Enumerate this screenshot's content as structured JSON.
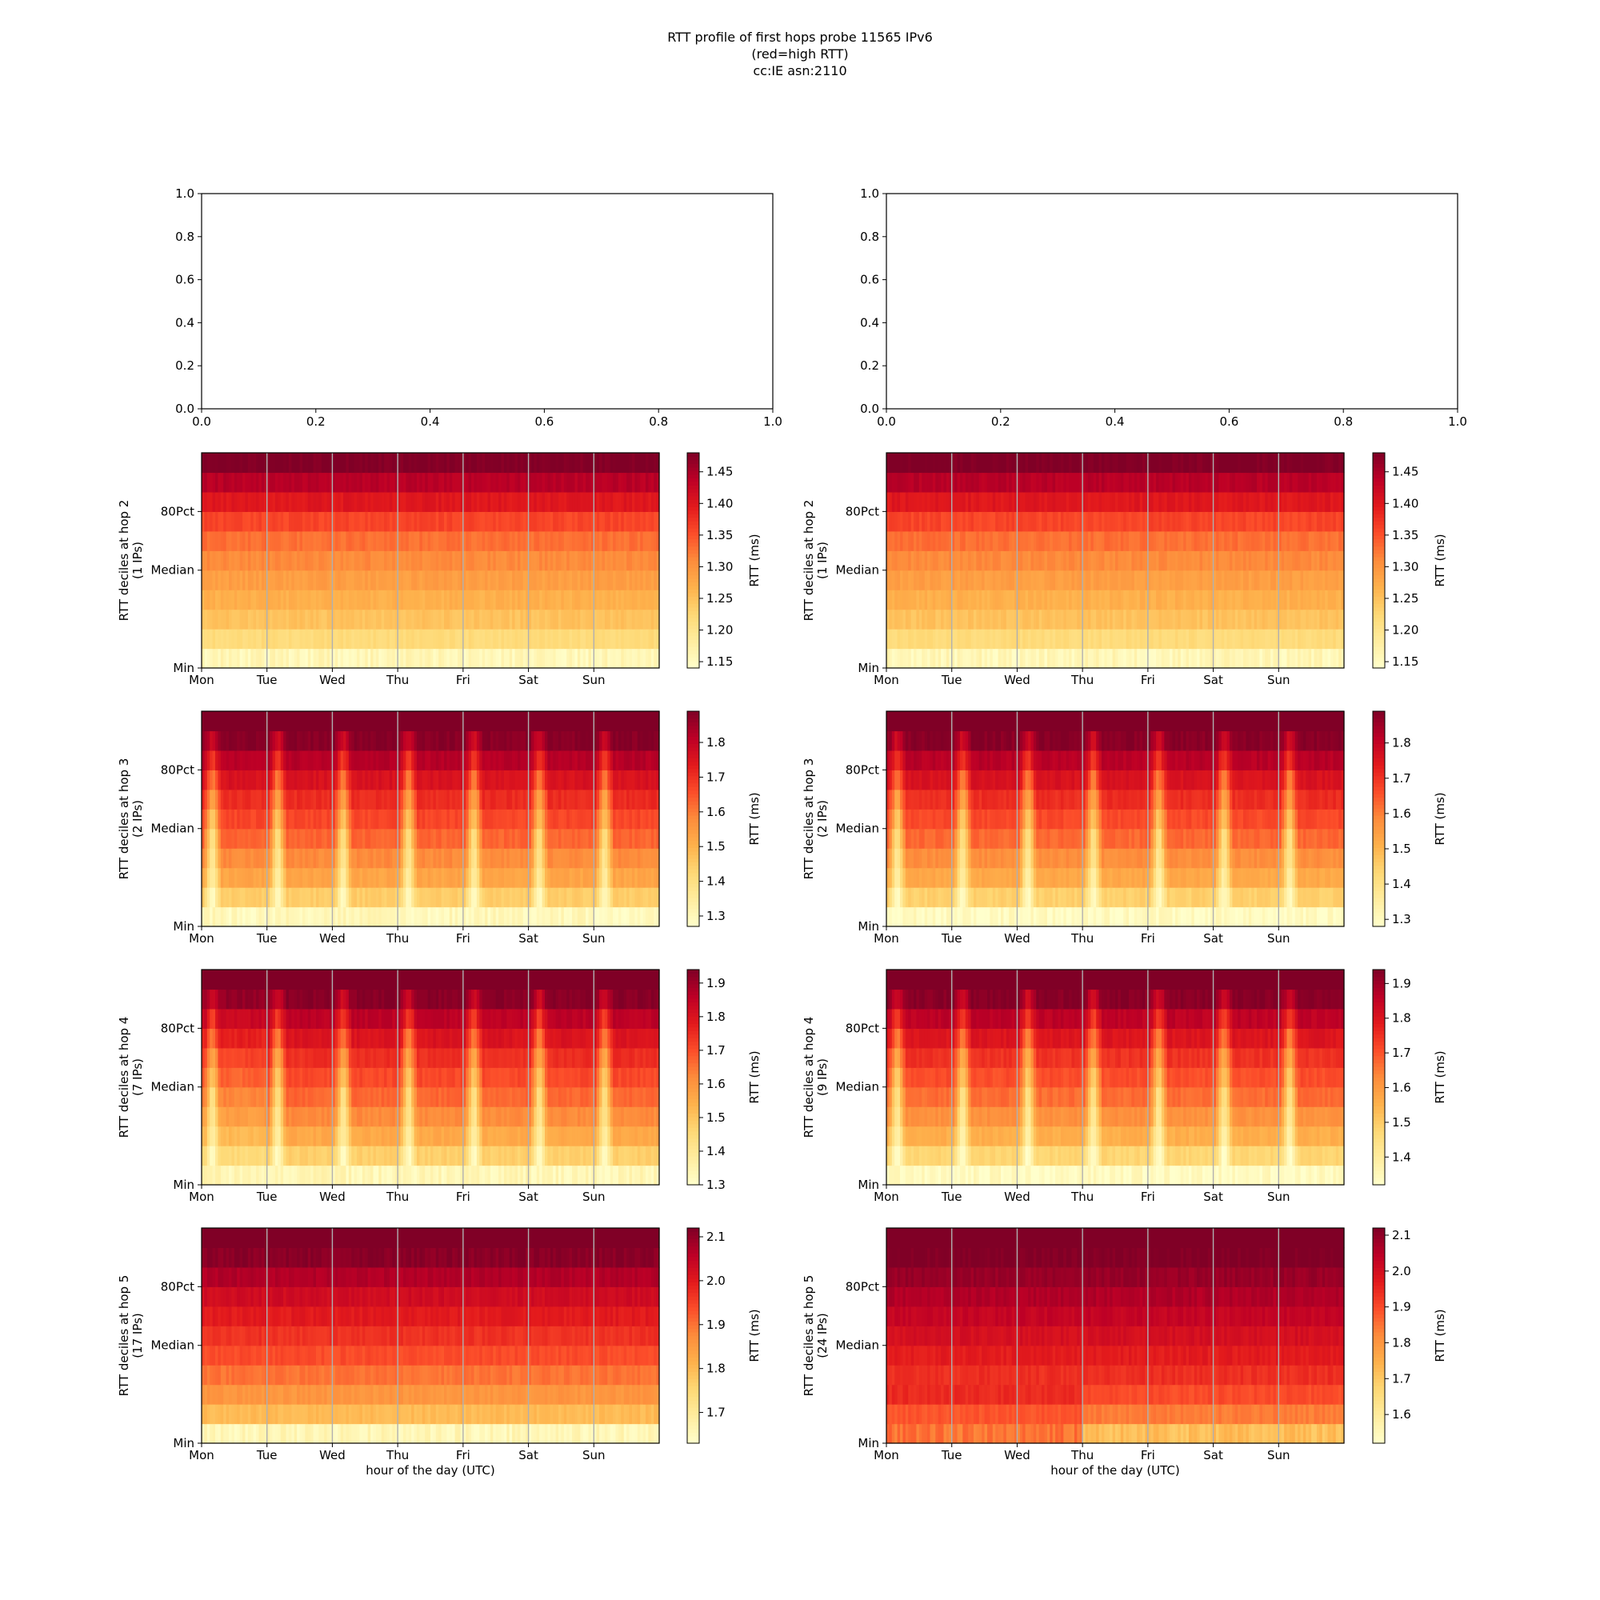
{
  "figure": {
    "title_lines": [
      "RTT profile of first hops probe 11565 IPv6",
      "(red=high RTT)",
      "cc:IE asn:2110"
    ]
  },
  "colors": {
    "colormap": "YlOrRd",
    "cmap_stops": [
      "#ffffcc",
      "#ffeda0",
      "#fed976",
      "#feb24c",
      "#fd8d3c",
      "#fc4e2a",
      "#e31a1c",
      "#bd0026",
      "#800026"
    ],
    "gridline": "#b0b0b0",
    "axis": "#000000"
  },
  "chart_data": [
    {
      "type": "line",
      "panel": "top-left",
      "empty": true,
      "xlim": [
        0.0,
        1.0
      ],
      "ylim": [
        0.0,
        1.0
      ],
      "xticks": [
        "0.0",
        "0.2",
        "0.4",
        "0.6",
        "0.8",
        "1.0"
      ],
      "yticks": [
        "0.0",
        "0.2",
        "0.4",
        "0.6",
        "0.8",
        "1.0"
      ]
    },
    {
      "type": "line",
      "panel": "top-right",
      "empty": true,
      "xlim": [
        0.0,
        1.0
      ],
      "ylim": [
        0.0,
        1.0
      ],
      "xticks": [
        "0.0",
        "0.2",
        "0.4",
        "0.6",
        "0.8",
        "1.0"
      ],
      "yticks": [
        "0.0",
        "0.2",
        "0.4",
        "0.6",
        "0.8",
        "1.0"
      ]
    },
    {
      "type": "heatmap",
      "panel": "left",
      "hop": 2,
      "ylabel": [
        "RTT deciles at hop 2",
        "(1 IPs)"
      ],
      "xlabel": "",
      "xticks": [
        "Mon",
        "Tue",
        "Wed",
        "Thu",
        "Fri",
        "Sat",
        "Sun"
      ],
      "yticks": [
        "Min",
        "Median",
        "80Pct"
      ],
      "colorbar": {
        "label": "RTT (ms)",
        "range": [
          1.14,
          1.48
        ],
        "ticks": [
          "1.15",
          "1.20",
          "1.25",
          "1.30",
          "1.35",
          "1.40",
          "1.45"
        ]
      },
      "pattern": "flat",
      "decile_rtt_ms": [
        1.16,
        1.22,
        1.25,
        1.27,
        1.29,
        1.31,
        1.33,
        1.36,
        1.4,
        1.44,
        1.48
      ]
    },
    {
      "type": "heatmap",
      "panel": "right",
      "hop": 2,
      "ylabel": [
        "RTT deciles at hop 2",
        "(1 IPs)"
      ],
      "xlabel": "",
      "xticks": [
        "Mon",
        "Tue",
        "Wed",
        "Thu",
        "Fri",
        "Sat",
        "Sun"
      ],
      "yticks": [
        "Min",
        "Median",
        "80Pct"
      ],
      "colorbar": {
        "label": "RTT (ms)",
        "range": [
          1.14,
          1.48
        ],
        "ticks": [
          "1.15",
          "1.20",
          "1.25",
          "1.30",
          "1.35",
          "1.40",
          "1.45"
        ]
      },
      "pattern": "flat",
      "decile_rtt_ms": [
        1.16,
        1.22,
        1.25,
        1.27,
        1.29,
        1.31,
        1.33,
        1.36,
        1.4,
        1.44,
        1.48
      ]
    },
    {
      "type": "heatmap",
      "panel": "left",
      "hop": 3,
      "ylabel": [
        "RTT deciles at hop 3",
        "(2 IPs)"
      ],
      "xlabel": "",
      "xticks": [
        "Mon",
        "Tue",
        "Wed",
        "Thu",
        "Fri",
        "Sat",
        "Sun"
      ],
      "yticks": [
        "Min",
        "Median",
        "80Pct"
      ],
      "colorbar": {
        "label": "RTT (ms)",
        "range": [
          1.27,
          1.89
        ],
        "ticks": [
          "1.3",
          "1.4",
          "1.5",
          "1.6",
          "1.7",
          "1.8"
        ]
      },
      "pattern": "daily_dip",
      "decile_rtt_ms": [
        1.3,
        1.45,
        1.53,
        1.58,
        1.63,
        1.67,
        1.71,
        1.76,
        1.82,
        1.88,
        1.92
      ]
    },
    {
      "type": "heatmap",
      "panel": "right",
      "hop": 3,
      "ylabel": [
        "RTT deciles at hop 3",
        "(2 IPs)"
      ],
      "xlabel": "",
      "xticks": [
        "Mon",
        "Tue",
        "Wed",
        "Thu",
        "Fri",
        "Sat",
        "Sun"
      ],
      "yticks": [
        "Min",
        "Median",
        "80Pct"
      ],
      "colorbar": {
        "label": "RTT (ms)",
        "range": [
          1.28,
          1.89
        ],
        "ticks": [
          "1.3",
          "1.4",
          "1.5",
          "1.6",
          "1.7",
          "1.8"
        ]
      },
      "pattern": "daily_dip",
      "decile_rtt_ms": [
        1.3,
        1.45,
        1.53,
        1.58,
        1.63,
        1.67,
        1.71,
        1.76,
        1.82,
        1.88,
        1.92
      ]
    },
    {
      "type": "heatmap",
      "panel": "left",
      "hop": 4,
      "ylabel": [
        "RTT deciles at hop 4",
        "(7 IPs)"
      ],
      "xlabel": "",
      "xticks": [
        "Mon",
        "Tue",
        "Wed",
        "Thu",
        "Fri",
        "Sat",
        "Sun"
      ],
      "yticks": [
        "Min",
        "Median",
        "80Pct"
      ],
      "colorbar": {
        "label": "RTT (ms)",
        "range": [
          1.3,
          1.94
        ],
        "ticks": [
          "1.3",
          "1.4",
          "1.5",
          "1.6",
          "1.7",
          "1.8",
          "1.9"
        ]
      },
      "pattern": "daily_dip",
      "decile_rtt_ms": [
        1.34,
        1.48,
        1.56,
        1.62,
        1.67,
        1.71,
        1.75,
        1.8,
        1.86,
        1.93,
        1.97
      ]
    },
    {
      "type": "heatmap",
      "panel": "right",
      "hop": 4,
      "ylabel": [
        "RTT deciles at hop 4",
        "(9 IPs)"
      ],
      "xlabel": "",
      "xticks": [
        "Mon",
        "Tue",
        "Wed",
        "Thu",
        "Fri",
        "Sat",
        "Sun"
      ],
      "yticks": [
        "Min",
        "Median",
        "80Pct"
      ],
      "colorbar": {
        "label": "RTT (ms)",
        "range": [
          1.32,
          1.94
        ],
        "ticks": [
          "1.4",
          "1.5",
          "1.6",
          "1.7",
          "1.8",
          "1.9"
        ]
      },
      "pattern": "daily_dip",
      "decile_rtt_ms": [
        1.34,
        1.48,
        1.56,
        1.62,
        1.67,
        1.71,
        1.75,
        1.8,
        1.86,
        1.93,
        1.97
      ]
    },
    {
      "type": "heatmap",
      "panel": "left",
      "hop": 5,
      "ylabel": [
        "RTT deciles at hop 5",
        "(17 IPs)"
      ],
      "xlabel": "hour of the day (UTC)",
      "xticks": [
        "Mon",
        "Tue",
        "Wed",
        "Thu",
        "Fri",
        "Sat",
        "Sun"
      ],
      "yticks": [
        "Min",
        "Median",
        "80Pct"
      ],
      "colorbar": {
        "label": "RTT (ms)",
        "range": [
          1.63,
          2.12
        ],
        "ticks": [
          "1.7",
          "1.8",
          "1.9",
          "2.0",
          "2.1"
        ]
      },
      "pattern": "flat",
      "decile_rtt_ms": [
        1.66,
        1.8,
        1.86,
        1.9,
        1.94,
        1.97,
        2.0,
        2.03,
        2.07,
        2.11,
        2.15
      ]
    },
    {
      "type": "heatmap",
      "panel": "right",
      "hop": 5,
      "ylabel": [
        "RTT deciles at hop 5",
        "(24 IPs)"
      ],
      "xlabel": "hour of the day (UTC)",
      "xticks": [
        "Mon",
        "Tue",
        "Wed",
        "Thu",
        "Fri",
        "Sat",
        "Sun"
      ],
      "yticks": [
        "Min",
        "Median",
        "80Pct"
      ],
      "colorbar": {
        "label": "RTT (ms)",
        "range": [
          1.52,
          2.12
        ],
        "ticks": [
          "1.6",
          "1.7",
          "1.8",
          "1.9",
          "2.0",
          "2.1"
        ]
      },
      "pattern": "step_thu",
      "decile_rtt_ms": [
        1.72,
        1.84,
        1.9,
        1.94,
        1.97,
        2.0,
        2.03,
        2.06,
        2.09,
        2.12,
        2.15
      ]
    }
  ]
}
